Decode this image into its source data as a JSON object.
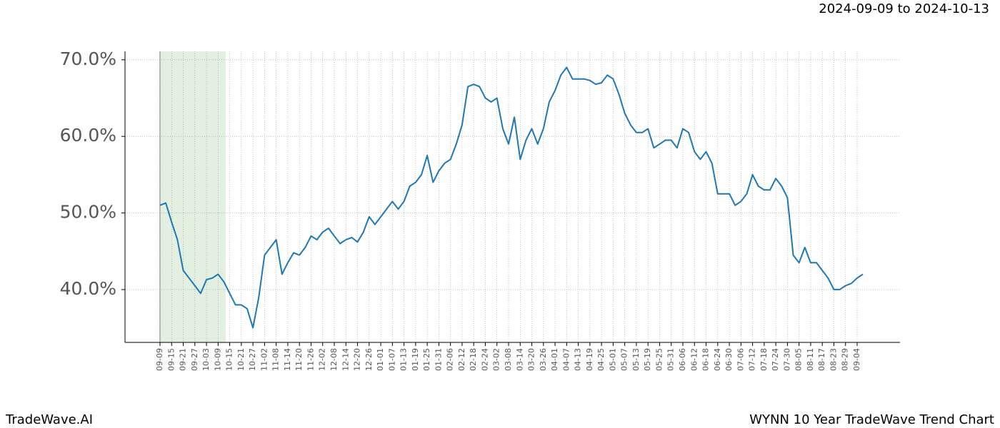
{
  "chart_data": {
    "type": "line",
    "subtitle": "2024-09-09 to 2024-10-13",
    "footer_left": "TradeWave.AI",
    "footer_right": "WYNN 10 Year TradeWave Trend Chart",
    "categories": [
      "09-09",
      null,
      "09-15",
      null,
      "09-21",
      null,
      "09-27",
      null,
      "10-03",
      null,
      "10-09",
      null,
      "10-15",
      null,
      "10-21",
      null,
      "10-27",
      null,
      "11-02",
      null,
      "11-08",
      null,
      "11-14",
      null,
      "11-20",
      null,
      "11-26",
      null,
      "12-02",
      null,
      "12-08",
      null,
      "12-14",
      null,
      "12-20",
      null,
      "12-26",
      null,
      "01-01",
      null,
      "01-07",
      null,
      "01-13",
      null,
      "01-19",
      null,
      "01-25",
      null,
      "01-31",
      null,
      "02-06",
      null,
      "02-12",
      null,
      "02-18",
      null,
      "02-24",
      null,
      "03-02",
      null,
      "03-08",
      null,
      "03-14",
      null,
      "03-20",
      null,
      "03-26",
      null,
      "04-01",
      null,
      "04-07",
      null,
      "04-13",
      null,
      "04-19",
      null,
      "04-25",
      null,
      "05-01",
      null,
      "05-07",
      null,
      "05-13",
      null,
      "05-19",
      null,
      "05-25",
      null,
      "05-31",
      null,
      "06-06",
      null,
      "06-12",
      null,
      "06-18",
      null,
      "06-24",
      null,
      "06-30",
      null,
      "07-06",
      null,
      "07-12",
      null,
      "07-18",
      null,
      "07-24",
      null,
      "07-30",
      null,
      "08-05",
      null,
      "08-11",
      null,
      "08-17",
      null,
      "08-23",
      null,
      "08-29",
      null,
      "09-04",
      null
    ],
    "values": [
      51.0,
      51.3,
      48.8,
      46.5,
      42.5,
      41.5,
      40.5,
      39.5,
      41.3,
      41.5,
      42.0,
      41.0,
      39.5,
      38.0,
      38.0,
      37.5,
      35.0,
      39.0,
      44.5,
      45.5,
      46.5,
      42.0,
      43.5,
      44.8,
      44.5,
      45.5,
      47.0,
      46.5,
      47.5,
      48.0,
      47.0,
      46.0,
      46.5,
      46.8,
      46.2,
      47.5,
      49.5,
      48.5,
      49.5,
      50.5,
      51.5,
      50.5,
      51.5,
      53.5,
      54.0,
      55.0,
      57.5,
      54.0,
      55.5,
      56.5,
      57.0,
      59.0,
      61.5,
      66.5,
      66.8,
      66.5,
      65.0,
      64.5,
      65.0,
      61.0,
      59.0,
      62.5,
      57.0,
      59.5,
      61.0,
      59.0,
      61.0,
      64.5,
      66.0,
      68.0,
      69.0,
      67.5,
      67.5,
      67.5,
      67.3,
      66.8,
      67.0,
      68.0,
      67.5,
      65.5,
      63.0,
      61.5,
      60.5,
      60.5,
      61.0,
      58.5,
      59.0,
      59.5,
      59.5,
      58.5,
      61.0,
      60.5,
      58.0,
      57.0,
      58.0,
      56.5,
      52.5,
      52.5,
      52.5,
      51.0,
      51.5,
      52.5,
      55.0,
      53.5,
      53.0,
      53.0,
      54.5,
      53.5,
      52.0,
      44.5,
      43.5,
      45.5,
      43.5,
      43.5,
      42.5,
      41.5,
      40.0,
      40.0,
      40.5,
      40.8,
      41.5,
      42.0
    ],
    "color": "#1f77b4",
    "ylim": [
      33.1,
      71.1
    ],
    "yticks": [
      {
        "value": 40,
        "label": "40.0%"
      },
      {
        "value": 50,
        "label": "50.0%"
      },
      {
        "value": 60,
        "label": "60.0%"
      },
      {
        "value": 70,
        "label": "70.0%"
      }
    ],
    "grid": true,
    "highlight": [
      0,
      11.3
    ],
    "highlight_color": "#e3efe0"
  }
}
